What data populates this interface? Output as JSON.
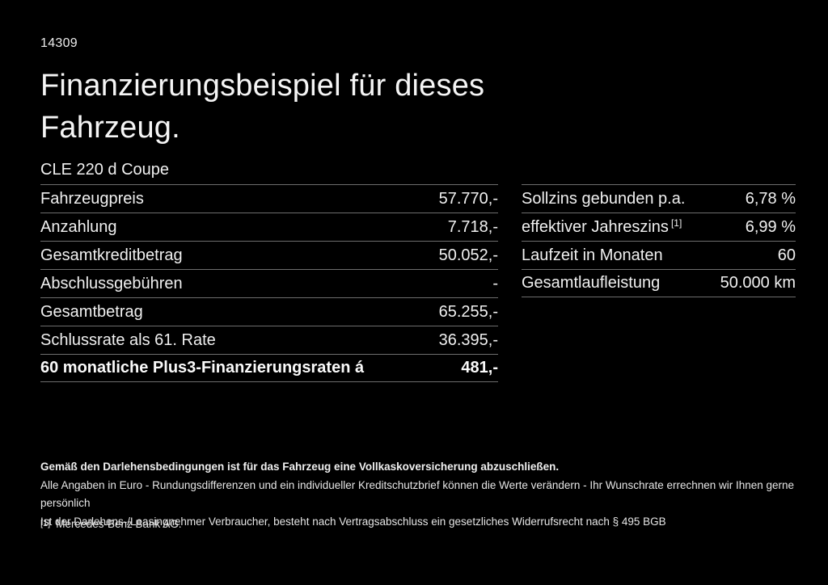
{
  "page": {
    "id_code": "14309",
    "title_line1": "Finanzierungsbeispiel für dieses",
    "title_line2": "Fahrzeug.",
    "vehicle_model": "CLE 220 d Coupe"
  },
  "financing_table": {
    "rows": [
      {
        "label": "Fahrzeugpreis",
        "value": "57.770,-"
      },
      {
        "label": "Anzahlung",
        "value": "7.718,-"
      },
      {
        "label": "Gesamtkreditbetrag",
        "value": "50.052,-"
      },
      {
        "label": "Abschlussgebühren",
        "value": "-"
      },
      {
        "label": "Gesamtbetrag",
        "value": "65.255,-"
      },
      {
        "label": "Schlussrate als 61. Rate",
        "value": "36.395,-"
      },
      {
        "label": "60 monatliche Plus3-Finanzierungsraten á",
        "value": "481,-"
      }
    ]
  },
  "conditions_table": {
    "rows": [
      {
        "label": "Sollzins gebunden p.a.",
        "sup": "",
        "value": "6,78 %"
      },
      {
        "label": "effektiver Jahreszins",
        "sup": "[1]",
        "value": "6,99 %"
      },
      {
        "label": "Laufzeit in Monaten",
        "sup": "",
        "value": "60"
      },
      {
        "label": "Gesamtlaufleistung",
        "sup": "",
        "value": "50.000 km"
      }
    ]
  },
  "footer": {
    "bold_note": "Gemäß den Darlehensbedingungen ist für das Fahrzeug eine Vollkaskoversicherung abzuschließen.",
    "note_line1": "Alle Angaben in Euro - Rundungsdifferenzen und ein individueller Kreditschutzbrief können die Werte verändern - Ihr Wunschrate errechnen wir Ihnen gerne persönlich",
    "note_line2": "Ist der Darlehens-/Leasingnehmer Verbraucher, besteht nach Vertragsabschluss ein gesetzliches Widerrufsrecht nach § 495 BGB",
    "footnote_marker": "[1]",
    "footnote_text": "Mercedes-Benz Bank AG."
  },
  "colors": {
    "background": "#000000",
    "text": "#f2f2f2",
    "divider": "#6e6e6e"
  }
}
